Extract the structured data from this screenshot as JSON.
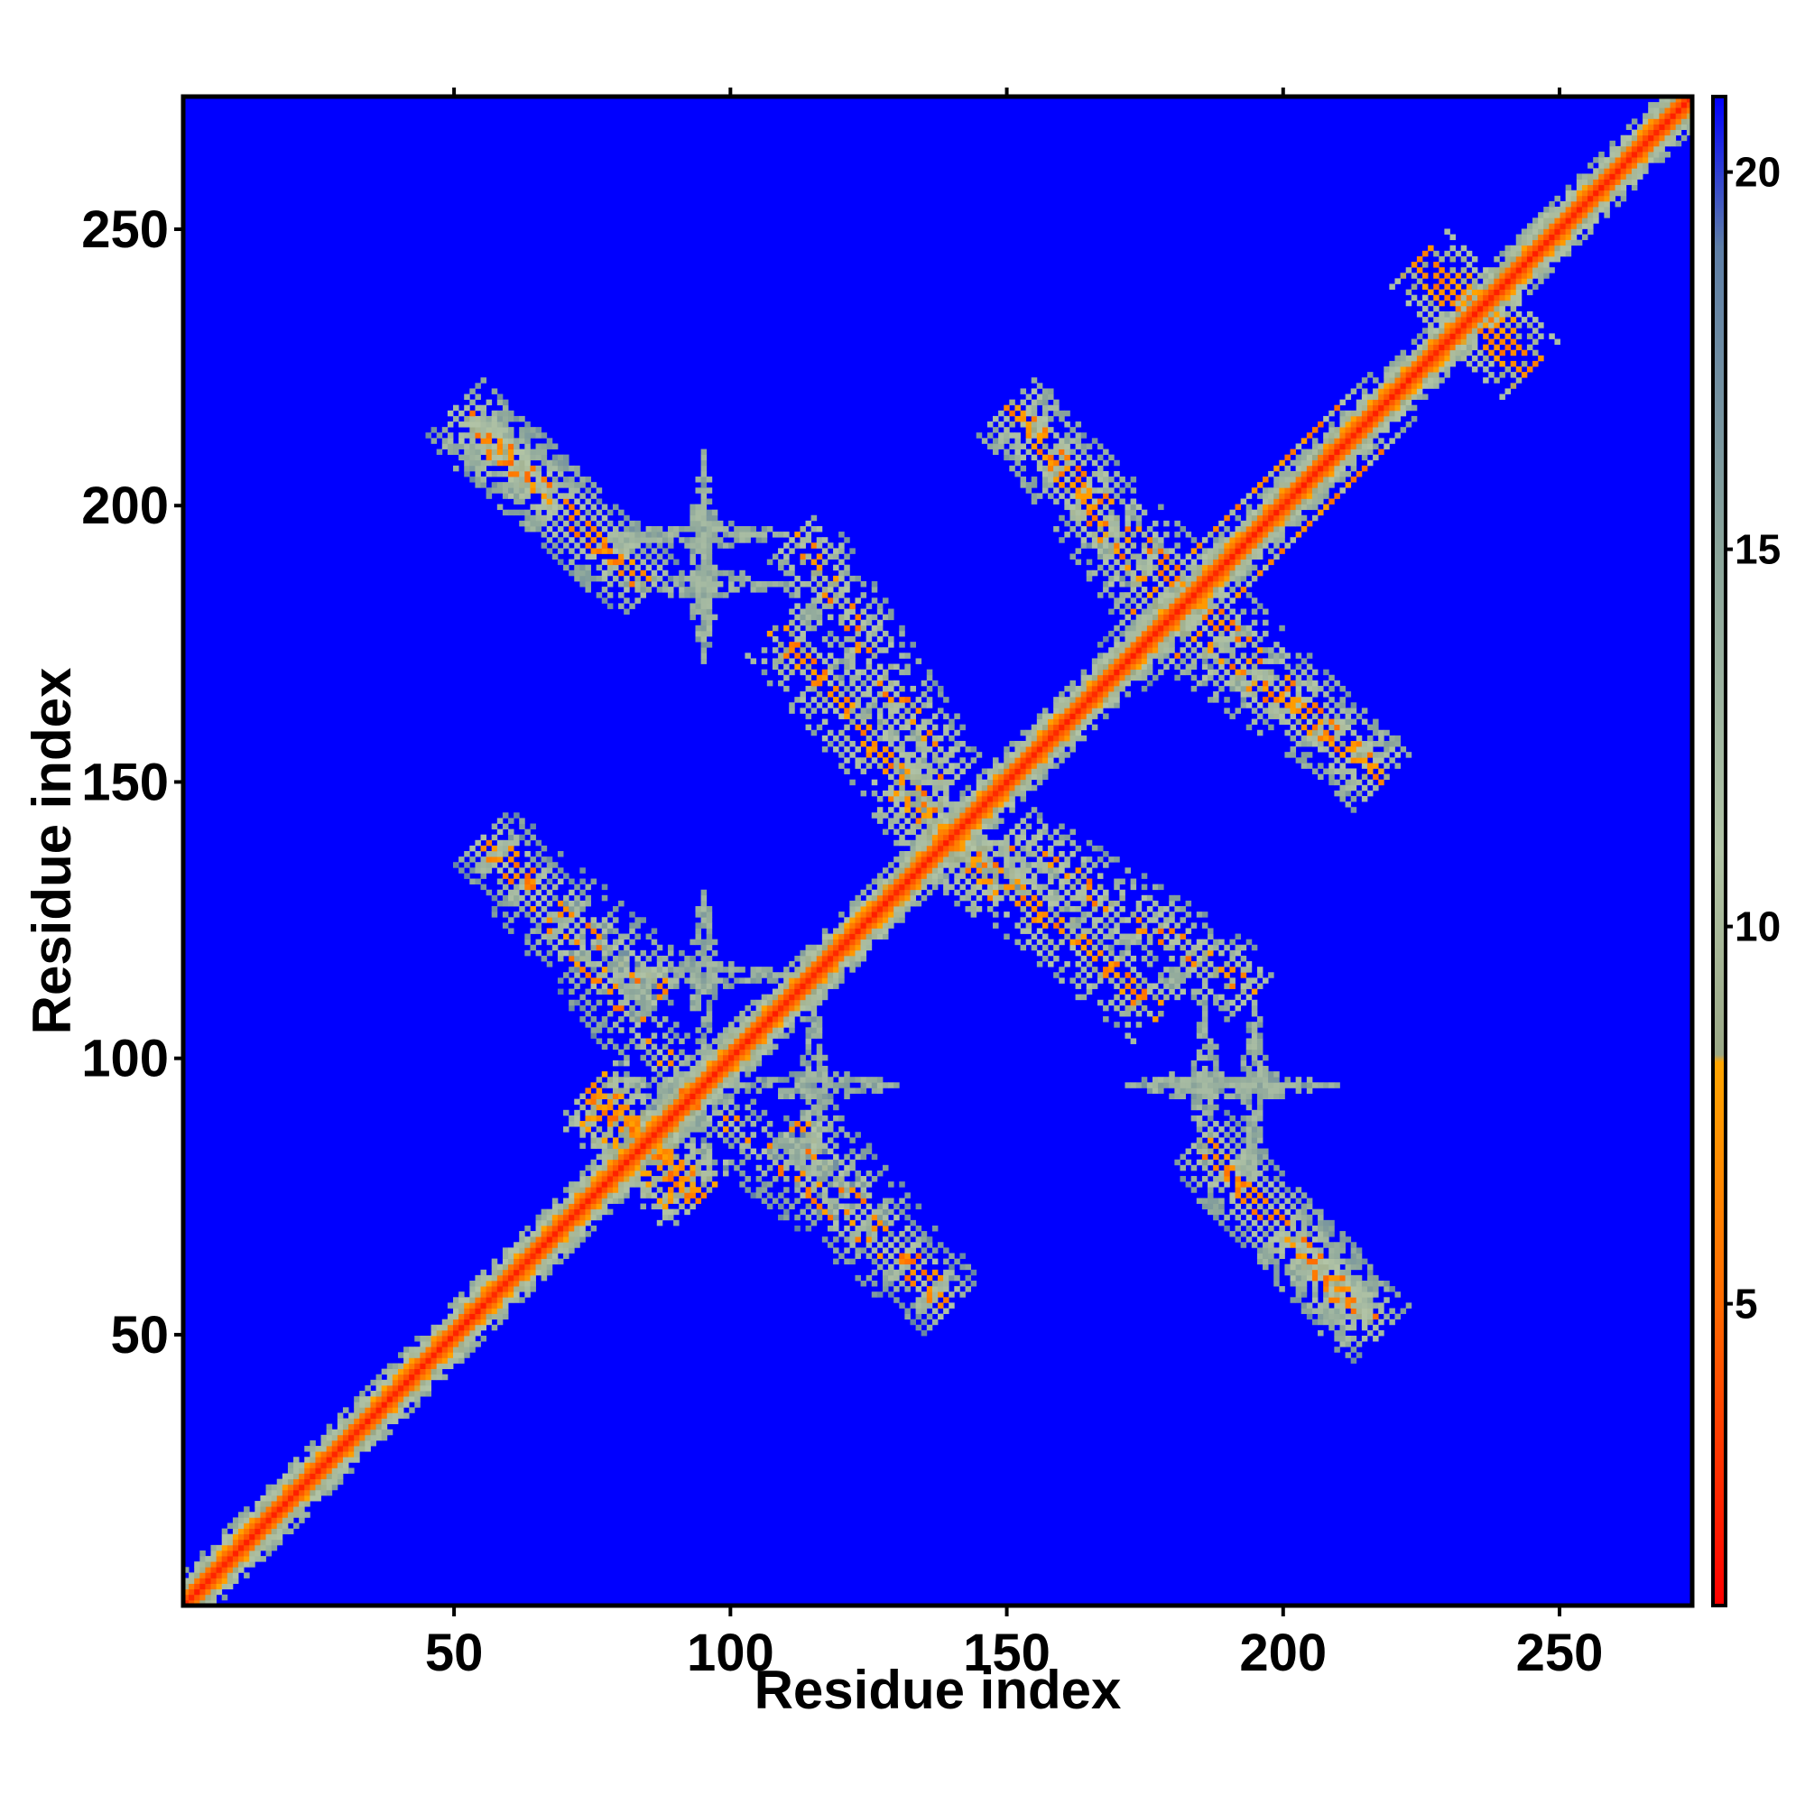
{
  "chart_data": {
    "type": "heatmap",
    "title": "",
    "xlabel": "Residue index",
    "ylabel": "Residue index",
    "xlim": [
      1,
      274
    ],
    "ylim": [
      1,
      274
    ],
    "xticks": [
      50,
      100,
      150,
      200,
      250
    ],
    "yticks": [
      50,
      100,
      150,
      200,
      250
    ],
    "colorbar": {
      "range": [
        1,
        21
      ],
      "ticks": [
        5,
        10,
        15,
        20
      ],
      "stops": [
        {
          "value": 1,
          "color": "#ff0000"
        },
        {
          "value": 5,
          "color": "#ff6a00"
        },
        {
          "value": 8.2,
          "color": "#ffa500"
        },
        {
          "value": 8.3,
          "color": "#9aa886"
        },
        {
          "value": 11,
          "color": "#b2c4a6"
        },
        {
          "value": 15,
          "color": "#8aa49a"
        },
        {
          "value": 19,
          "color": "#5e7ea6"
        },
        {
          "value": 21,
          "color": "#0000ff"
        }
      ]
    },
    "background_value": 21,
    "features": [
      {
        "kind": "diagonal",
        "from": 1,
        "to": 274,
        "core_value": 2,
        "width": 6
      },
      {
        "kind": "strand_pair",
        "from": [
          52,
          215
        ],
        "to": [
          85,
          185
        ],
        "value": 9
      },
      {
        "kind": "strand_pair",
        "from": [
          55,
          140
        ],
        "to": [
          88,
          112
        ],
        "value": 10
      },
      {
        "kind": "strand_pair",
        "from": [
          95,
          92
        ],
        "to": [
          140,
          55
        ],
        "value": 11
      },
      {
        "kind": "strand_pair",
        "from": [
          75,
          92
        ],
        "to": [
          95,
          75
        ],
        "value": 6
      },
      {
        "kind": "strand_pair",
        "from": [
          108,
          178
        ],
        "to": [
          148,
          130
        ],
        "value": 8
      },
      {
        "kind": "strand_pair",
        "from": [
          150,
          218
        ],
        "to": [
          190,
          178
        ],
        "value": 9
      },
      {
        "kind": "strand_pair",
        "from": [
          150,
          140
        ],
        "to": [
          195,
          112
        ],
        "value": 9
      },
      {
        "kind": "strand_pair",
        "from": [
          178,
          180
        ],
        "to": [
          218,
          152
        ],
        "value": 9
      },
      {
        "kind": "strand_pair",
        "from": [
          185,
          85
        ],
        "to": [
          218,
          50
        ],
        "value": 10
      },
      {
        "kind": "strand_pair",
        "from": [
          220,
          212
        ],
        "to": [
          180,
          172
        ],
        "value": 11
      },
      {
        "kind": "strand_pair",
        "from": [
          225,
          245
        ],
        "to": [
          245,
          225
        ],
        "value": 6
      },
      {
        "kind": "cross",
        "center": [
          95,
          186
        ],
        "value": 12
      },
      {
        "kind": "cross",
        "center": [
          95,
          115
        ],
        "value": 12
      },
      {
        "kind": "cross",
        "center": [
          195,
          95
        ],
        "value": 12
      }
    ]
  }
}
